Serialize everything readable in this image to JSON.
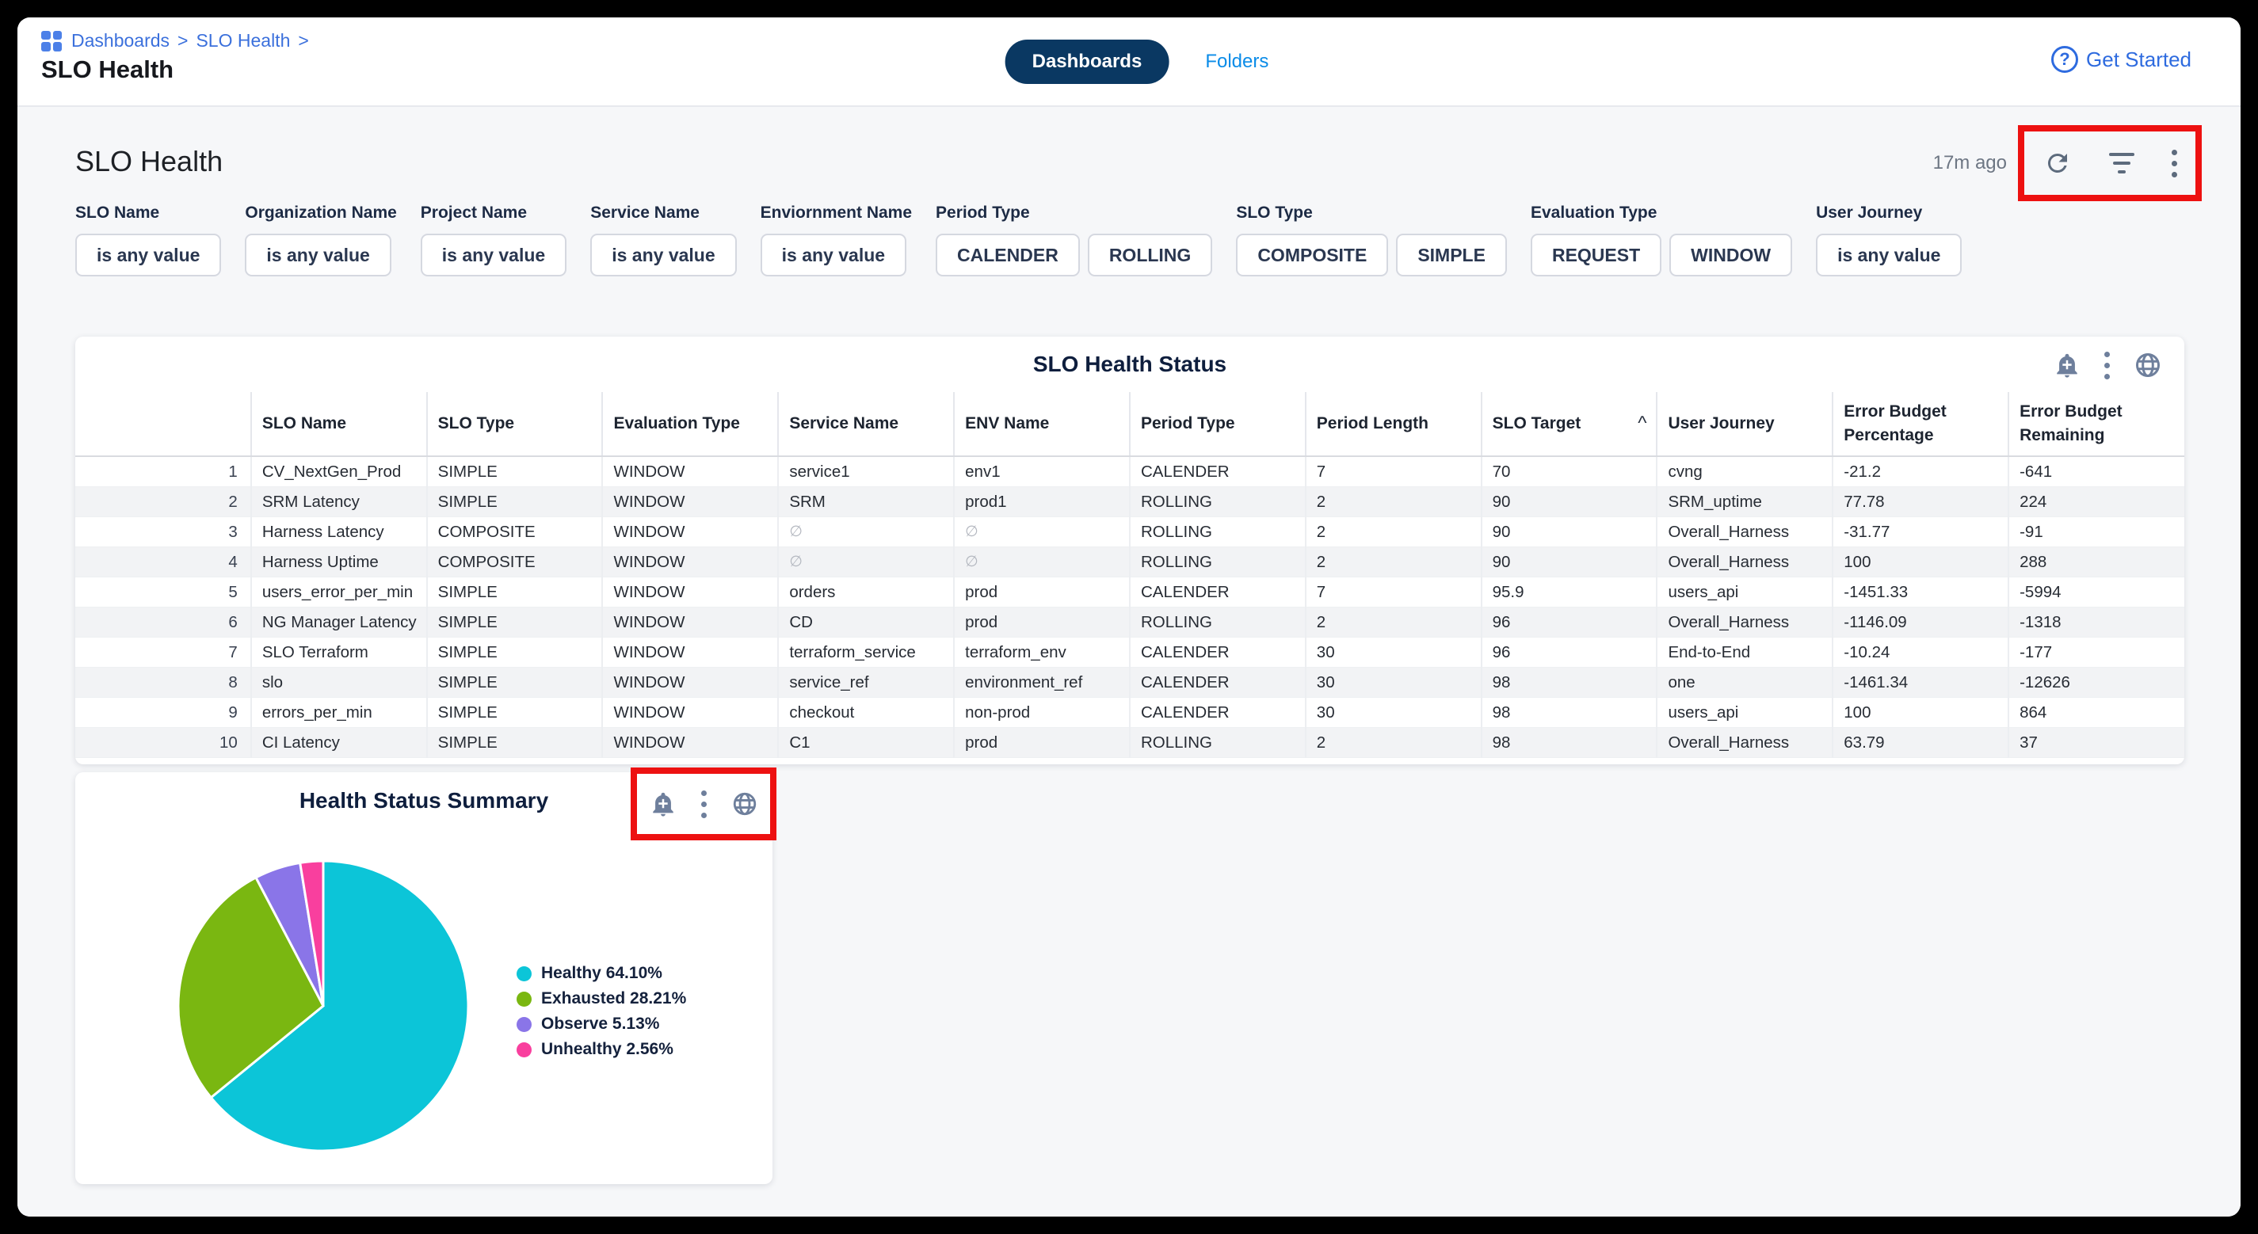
{
  "topbar": {
    "breadcrumb": {
      "items": [
        "Dashboards",
        "SLO Health"
      ],
      "separator": ">"
    },
    "title": "SLO Health",
    "tabs": [
      {
        "label": "Dashboards",
        "active": true
      },
      {
        "label": "Folders",
        "active": false
      }
    ],
    "get_started_label": "Get Started",
    "help_glyph": "?"
  },
  "dashboard": {
    "title": "SLO Health",
    "updated": "17m ago",
    "action_icons": [
      "refresh-icon",
      "filter-icon",
      "kebab-menu-icon"
    ]
  },
  "filters": [
    {
      "label": "SLO Name",
      "options": [
        "is any value"
      ]
    },
    {
      "label": "Organization Name",
      "options": [
        "is any value"
      ]
    },
    {
      "label": "Project Name",
      "options": [
        "is any value"
      ]
    },
    {
      "label": "Service Name",
      "options": [
        "is any value"
      ]
    },
    {
      "label": "Enviornment Name",
      "options": [
        "is any value"
      ]
    },
    {
      "label": "Period Type",
      "options": [
        "CALENDER",
        "ROLLING"
      ]
    },
    {
      "label": "SLO Type",
      "options": [
        "COMPOSITE",
        "SIMPLE"
      ]
    },
    {
      "label": "Evaluation Type",
      "options": [
        "REQUEST",
        "WINDOW"
      ]
    },
    {
      "label": "User Journey",
      "options": [
        "is any value"
      ]
    }
  ],
  "table_card": {
    "title": "SLO Health Status",
    "icons": [
      "bell-plus-icon",
      "kebab-menu-icon",
      "globe-icon"
    ],
    "columns": [
      "SLO Name",
      "SLO Type",
      "Evaluation Type",
      "Service Name",
      "ENV Name",
      "Period Type",
      "Period Length",
      "SLO Target",
      "User Journey",
      "Error Budget Percentage",
      "Error Budget Remaining"
    ],
    "sorted_column_index": 7,
    "sort_caret": "^",
    "rows": [
      [
        "CV_NextGen_Prod",
        "SIMPLE",
        "WINDOW",
        "service1",
        "env1",
        "CALENDER",
        "7",
        "70",
        "cvng",
        "-21.2",
        "-641"
      ],
      [
        "SRM Latency",
        "SIMPLE",
        "WINDOW",
        "SRM",
        "prod1",
        "ROLLING",
        "2",
        "90",
        "SRM_uptime",
        "77.78",
        "224"
      ],
      [
        "Harness Latency",
        "COMPOSITE",
        "WINDOW",
        "∅",
        "∅",
        "ROLLING",
        "2",
        "90",
        "Overall_Harness",
        "-31.77",
        "-91"
      ],
      [
        "Harness Uptime",
        "COMPOSITE",
        "WINDOW",
        "∅",
        "∅",
        "ROLLING",
        "2",
        "90",
        "Overall_Harness",
        "100",
        "288"
      ],
      [
        "users_error_per_min",
        "SIMPLE",
        "WINDOW",
        "orders",
        "prod",
        "CALENDER",
        "7",
        "95.9",
        "users_api",
        "-1451.33",
        "-5994"
      ],
      [
        "NG Manager Latency",
        "SIMPLE",
        "WINDOW",
        "CD",
        "prod",
        "ROLLING",
        "2",
        "96",
        "Overall_Harness",
        "-1146.09",
        "-1318"
      ],
      [
        "SLO Terraform",
        "SIMPLE",
        "WINDOW",
        "terraform_service",
        "terraform_env",
        "CALENDER",
        "30",
        "96",
        "End-to-End",
        "-10.24",
        "-177"
      ],
      [
        "slo",
        "SIMPLE",
        "WINDOW",
        "service_ref",
        "environment_ref",
        "CALENDER",
        "30",
        "98",
        "one",
        "-1461.34",
        "-12626"
      ],
      [
        "errors_per_min",
        "SIMPLE",
        "WINDOW",
        "checkout",
        "non-prod",
        "CALENDER",
        "30",
        "98",
        "users_api",
        "100",
        "864"
      ],
      [
        "CI Latency",
        "SIMPLE",
        "WINDOW",
        "C1",
        "prod",
        "ROLLING",
        "2",
        "98",
        "Overall_Harness",
        "63.79",
        "37"
      ]
    ]
  },
  "chart_card": {
    "title": "Health Status Summary",
    "icons": [
      "bell-plus-icon",
      "kebab-menu-icon",
      "globe-icon"
    ]
  },
  "chart_data": {
    "type": "pie",
    "title": "Health Status Summary",
    "series": [
      {
        "name": "Healthy",
        "value": 64.1,
        "color": "#0cc5d8"
      },
      {
        "name": "Exhausted",
        "value": 28.21,
        "color": "#7ab711"
      },
      {
        "name": "Observe",
        "value": 5.13,
        "color": "#8a75e8"
      },
      {
        "name": "Unhealthy",
        "value": 2.56,
        "color": "#f93f9e"
      }
    ],
    "legend_labels": [
      "Healthy 64.10%",
      "Exhausted 28.21%",
      "Observe 5.13%",
      "Unhealthy 2.56%"
    ],
    "legend_position": "right",
    "start_angle_deg": -90,
    "direction": "clockwise"
  },
  "colors": {
    "tab_active_bg": "#0a3862",
    "breadcrumb_blue": "#3b70dc",
    "folders_blue": "#0b8ce8",
    "annotation_red": "#ed1111",
    "card_icon_gray": "#6e7f9c",
    "toolbar_icon_gray": "#5d6b7d",
    "row_alt_bg": "#f2f3f5",
    "page_bg": "#f6f7f9"
  }
}
